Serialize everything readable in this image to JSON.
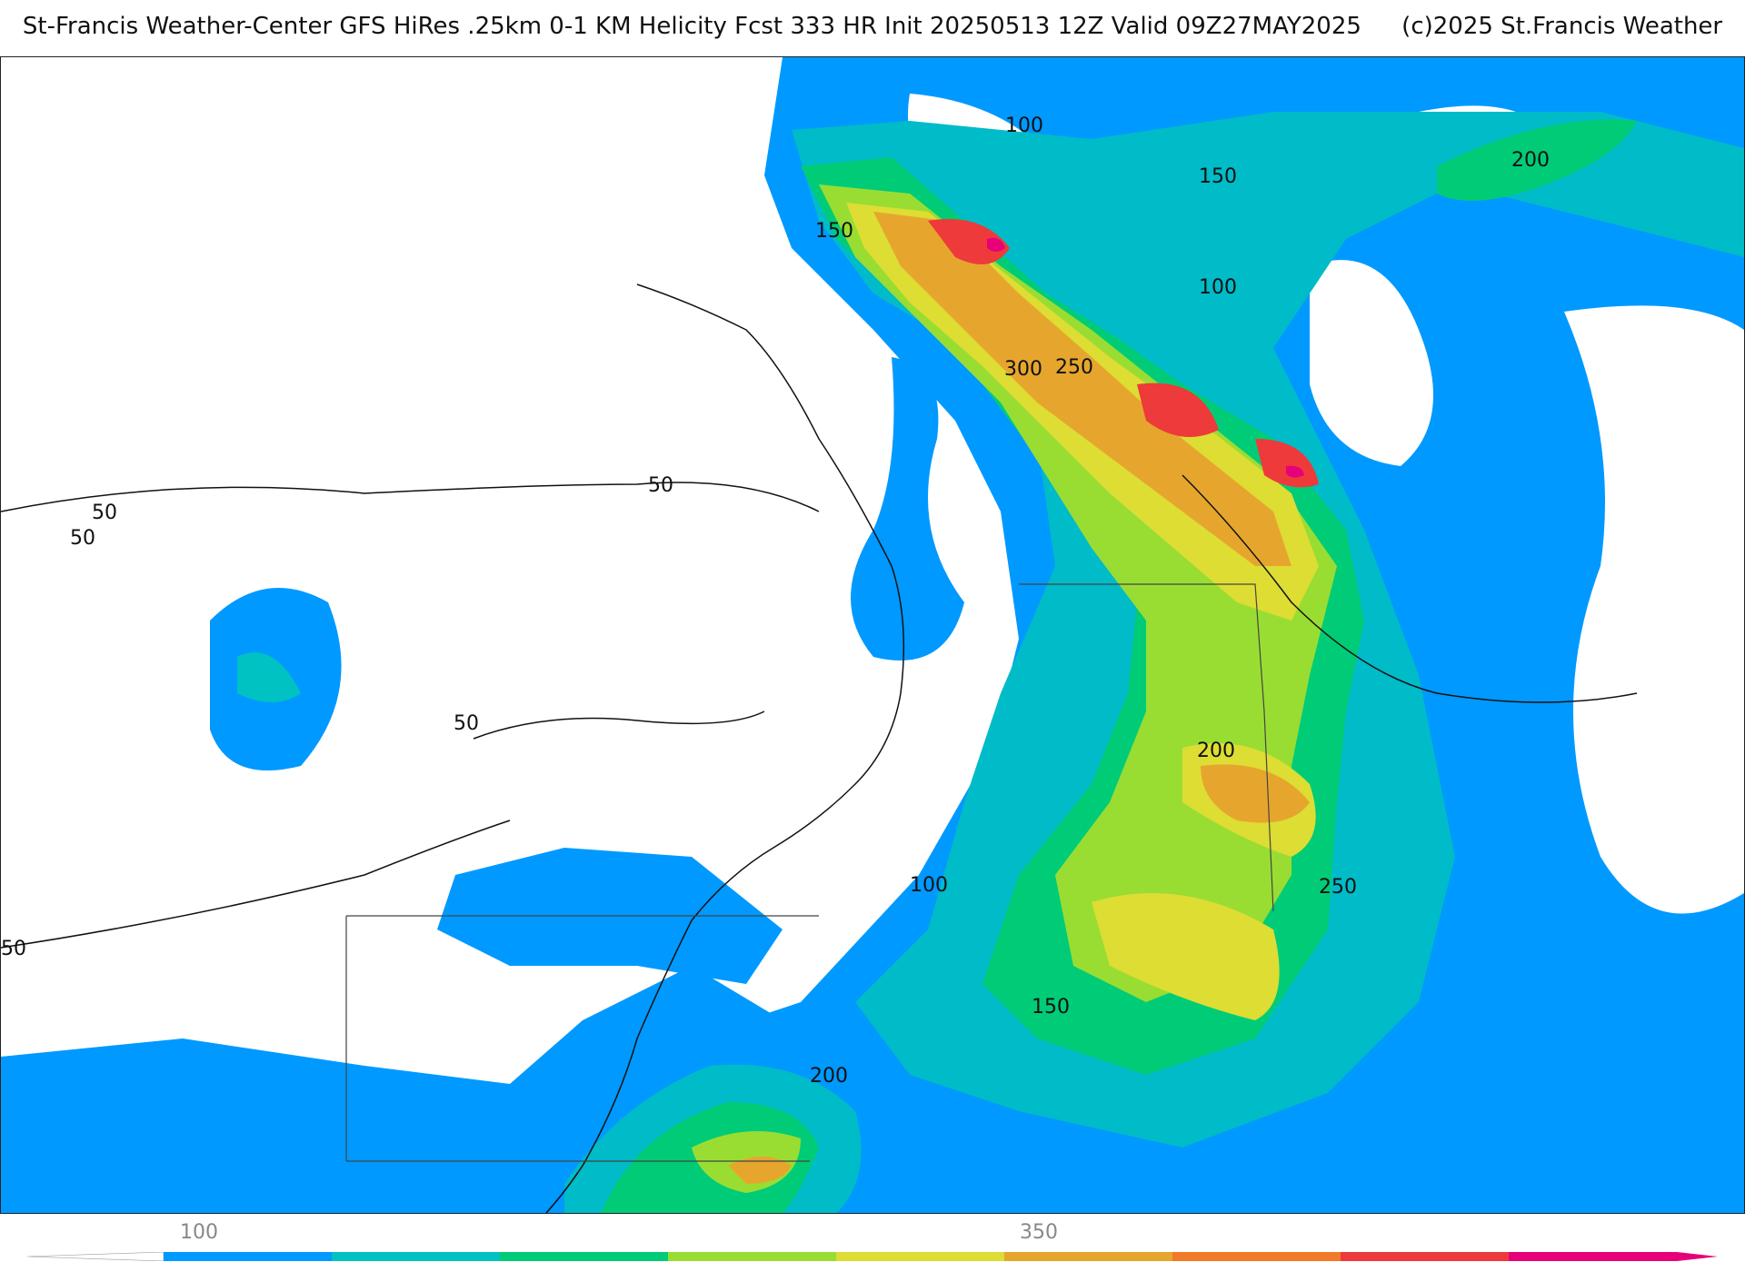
{
  "header": {
    "source": "St-Francis Weather-Center GFS HiRes .25km 0-1 KM Helicity Fcst 333 HR Init 20250513 12Z  Valid 09Z27MAY2025",
    "copyright": "(c)2025 St.Francis Weather"
  },
  "contour_labels": [
    "100",
    "150",
    "200",
    "150",
    "100",
    "300",
    "250",
    "50",
    "50",
    "50",
    "50",
    "200",
    "250",
    "100",
    "150",
    "200",
    "50"
  ],
  "colorbar": {
    "tick_labels": [
      "100",
      "350"
    ],
    "colors": [
      "#0099ff",
      "#00c2c2",
      "#00cc77",
      "#99dd33",
      "#dddd33",
      "#e6a62e",
      "#f07a28",
      "#ee3a3a",
      "#e6007a"
    ]
  },
  "fill_colors": {
    "level_50": "#0099ff",
    "level_100": "#00bbc8",
    "level_150": "#00cc77",
    "level_200": "#99dd33",
    "level_250": "#dddd33",
    "level_300": "#e6a62e",
    "level_350": "#f07a28",
    "level_400": "#ee3a3a",
    "level_450": "#e6007a"
  }
}
